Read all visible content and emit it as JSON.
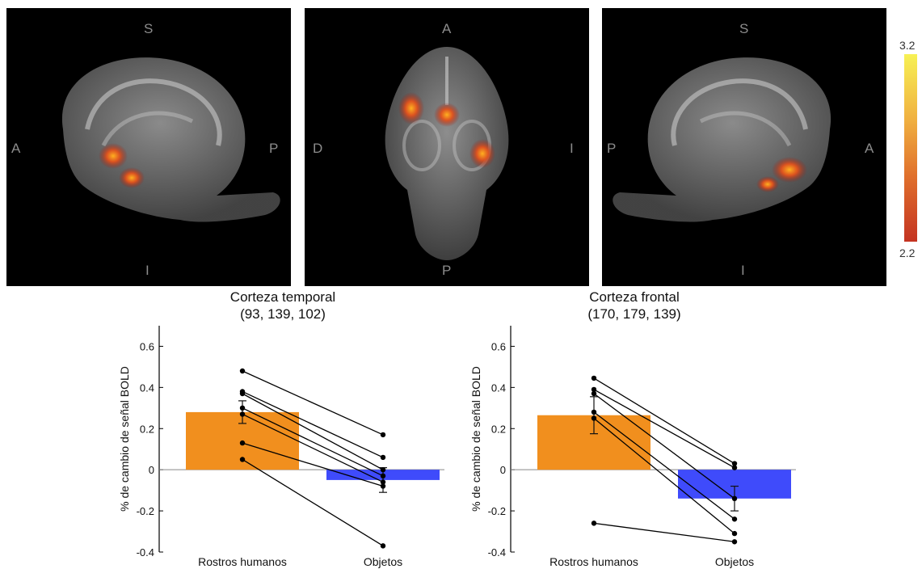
{
  "panels": [
    {
      "id": "sagittal-left",
      "labels": {
        "top": "S",
        "bottom": "I",
        "left": "A",
        "right": "P"
      }
    },
    {
      "id": "axial",
      "labels": {
        "top": "A",
        "bottom": "P",
        "left": "D",
        "right": "I"
      }
    },
    {
      "id": "sagittal-right",
      "labels": {
        "top": "S",
        "bottom": "I",
        "left": "P",
        "right": "A"
      }
    }
  ],
  "colorbar": {
    "max_label": "3.2",
    "min_label": "2.2",
    "colors": [
      "#f7f154",
      "#f0b040",
      "#e0702c",
      "#c43322"
    ]
  },
  "chart_data": [
    {
      "type": "bar",
      "title": "Corteza temporal",
      "subtitle": "(93, 139, 102)",
      "ylabel": "% de cambio de señal BOLD",
      "categories": [
        "Rostros humanos",
        "Objetos"
      ],
      "values": [
        0.28,
        -0.05
      ],
      "errors": [
        0.055,
        0.06
      ],
      "colors": [
        "#f18f1e",
        "#3f4bfb"
      ],
      "ylim": [
        -0.4,
        0.7
      ],
      "yticks": [
        -0.4,
        -0.2,
        0,
        0.2,
        0.4,
        0.6
      ],
      "ytick_labels": [
        "-0.4",
        "-0.2",
        "0",
        "0.2",
        "0.4",
        "0.6"
      ],
      "subjects": [
        [
          0.48,
          0.17
        ],
        [
          0.38,
          0.06
        ],
        [
          0.37,
          0.0
        ],
        [
          0.3,
          -0.03
        ],
        [
          0.27,
          -0.06
        ],
        [
          0.13,
          -0.08
        ],
        [
          0.05,
          -0.37
        ]
      ]
    },
    {
      "type": "bar",
      "title": "Corteza frontal",
      "subtitle": "(170, 179, 139)",
      "ylabel": "% de cambio de señal BOLD",
      "categories": [
        "Rostros humanos",
        "Objetos"
      ],
      "values": [
        0.265,
        -0.14
      ],
      "errors": [
        0.09,
        0.06
      ],
      "colors": [
        "#f18f1e",
        "#3f4bfb"
      ],
      "ylim": [
        -0.4,
        0.7
      ],
      "yticks": [
        -0.4,
        -0.2,
        0,
        0.2,
        0.4,
        0.6
      ],
      "ytick_labels": [
        "-0.4",
        "-0.2",
        "0",
        "0.2",
        "0.4",
        "0.6"
      ],
      "subjects": [
        [
          0.445,
          0.03
        ],
        [
          0.39,
          0.01
        ],
        [
          0.37,
          -0.14
        ],
        [
          0.28,
          -0.24
        ],
        [
          0.25,
          -0.31
        ],
        [
          -0.26,
          -0.35
        ]
      ]
    }
  ]
}
